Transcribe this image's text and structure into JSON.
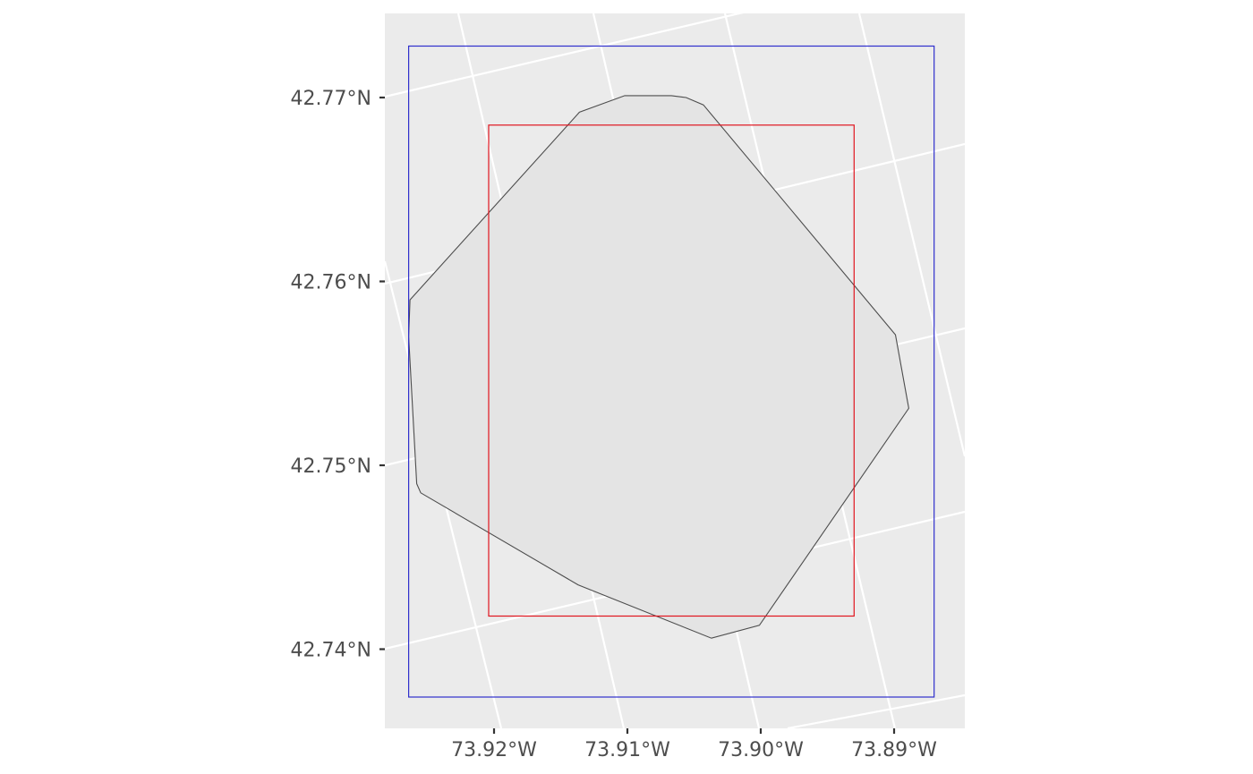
{
  "colors": {
    "panel_background": "#EBEBEB",
    "graticule": "#FFFFFF",
    "polygon_fill": "#E4E4E4",
    "polygon_stroke": "#4D4D4D",
    "outer_bbox": "#2F2FCC",
    "inner_bbox": "#E0141E",
    "axis_text": "#4D4D4D",
    "axis_ticks": "#333333"
  },
  "chart_data": {
    "type": "map",
    "xlabel": "",
    "ylabel": "",
    "grid": true,
    "x_axis": {
      "ticks": [
        -73.92,
        -73.91,
        -73.9,
        -73.89
      ],
      "tick_labels": [
        "73.92°W",
        "73.91°W",
        "73.90°W",
        "73.89°W"
      ]
    },
    "y_axis": {
      "ticks": [
        42.77,
        42.76,
        42.75,
        42.74
      ],
      "tick_labels": [
        "42.77°N",
        "42.76°N",
        "42.75°N",
        "42.74°N"
      ]
    },
    "features": [
      {
        "kind": "polygon",
        "fill": "#E4E4E4",
        "stroke": "#4D4D4D",
        "lonlat": [
          [
            -73.9263,
            42.759
          ],
          [
            -73.9264,
            42.757
          ],
          [
            -73.9258,
            42.749
          ],
          [
            -73.9255,
            42.7485
          ],
          [
            -73.9137,
            42.7435
          ],
          [
            -73.9037,
            42.7406
          ],
          [
            -73.9001,
            42.7413
          ],
          [
            -73.8889,
            42.7531
          ],
          [
            -73.889,
            42.7535
          ],
          [
            -73.8899,
            42.7571
          ],
          [
            -73.9043,
            42.7696
          ],
          [
            -73.9056,
            42.77
          ],
          [
            -73.9067,
            42.7701
          ],
          [
            -73.9102,
            42.7701
          ],
          [
            -73.9136,
            42.7692
          ]
        ]
      },
      {
        "kind": "bbox",
        "stroke": "#2F2FCC",
        "lon_range": [
          -73.9264,
          -73.887
        ],
        "lat_range": [
          42.7374,
          42.7728
        ]
      },
      {
        "kind": "bbox",
        "stroke": "#E0141E",
        "lon_range": [
          -73.9204,
          -73.893
        ],
        "lat_range": [
          42.7418,
          42.7685
        ]
      }
    ]
  }
}
